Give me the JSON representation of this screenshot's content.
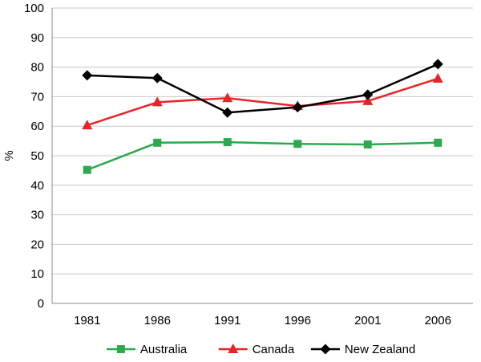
{
  "chart_data": {
    "type": "line",
    "title": "",
    "xlabel": "",
    "ylabel": "%",
    "ylim": [
      0,
      100
    ],
    "yticks": [
      0,
      10,
      20,
      30,
      40,
      50,
      60,
      70,
      80,
      90,
      100
    ],
    "grid": "horizontal",
    "legend_position": "bottom",
    "categories": [
      "1981",
      "1986",
      "1991",
      "1996",
      "2001",
      "2006"
    ],
    "series": [
      {
        "name": "Australia",
        "color": "#2FA84F",
        "marker": "square",
        "values": [
          45.2,
          54.4,
          54.6,
          54.0,
          53.8,
          54.4
        ]
      },
      {
        "name": "Canada",
        "color": "#E8242A",
        "marker": "triangle",
        "values": [
          60.3,
          68.1,
          69.5,
          66.8,
          68.5,
          76.1
        ]
      },
      {
        "name": "New Zealand",
        "color": "#000000",
        "marker": "diamond",
        "values": [
          77.2,
          76.3,
          64.6,
          66.4,
          70.7,
          81.0
        ]
      }
    ]
  }
}
